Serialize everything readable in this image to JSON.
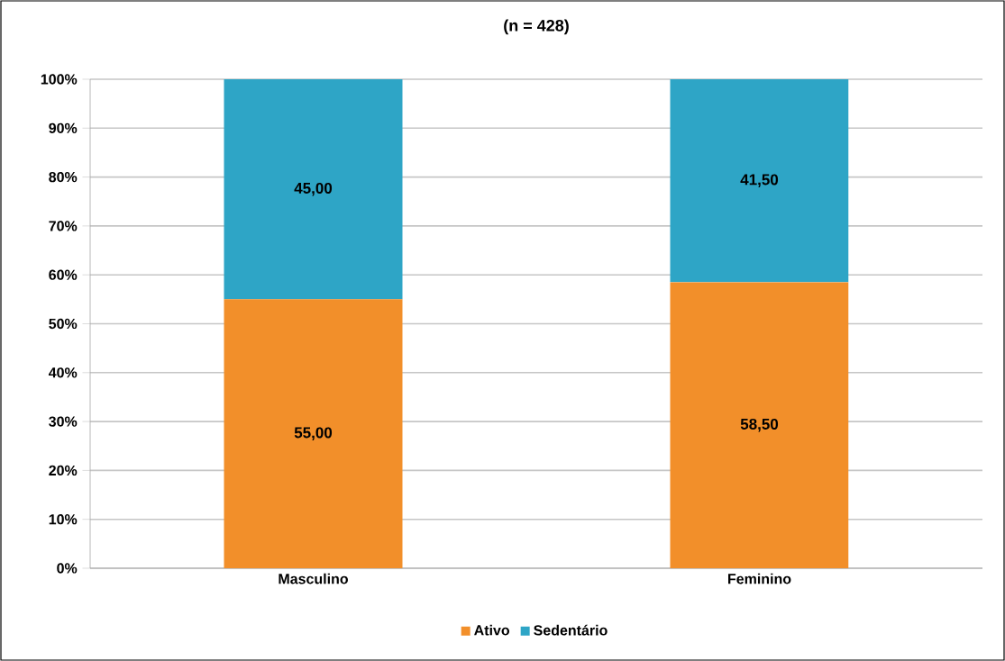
{
  "chart_data": {
    "type": "bar",
    "title": "(n = 428)",
    "stacked": true,
    "categories": [
      "Masculino",
      "Feminino"
    ],
    "series": [
      {
        "name": "Ativo",
        "color": "#f28f2a",
        "values": [
          55,
          58.5
        ],
        "value_labels": [
          "55,00",
          "58,50"
        ]
      },
      {
        "name": "Sedentário",
        "color": "#2ea5c6",
        "values": [
          45,
          41.5
        ],
        "value_labels": [
          "45,00",
          "41,50"
        ]
      }
    ],
    "ylim": [
      0,
      100
    ],
    "yticks": [
      {
        "value": 0,
        "label": "0%"
      },
      {
        "value": 10,
        "label": "10%"
      },
      {
        "value": 20,
        "label": "20%"
      },
      {
        "value": 30,
        "label": "30%"
      },
      {
        "value": 40,
        "label": "40%"
      },
      {
        "value": 50,
        "label": "50%"
      },
      {
        "value": 60,
        "label": "60%"
      },
      {
        "value": 70,
        "label": "70%"
      },
      {
        "value": 80,
        "label": "80%"
      },
      {
        "value": 90,
        "label": "90%"
      },
      {
        "value": 100,
        "label": "100%"
      }
    ],
    "grid": "y",
    "legend": "bottom"
  }
}
